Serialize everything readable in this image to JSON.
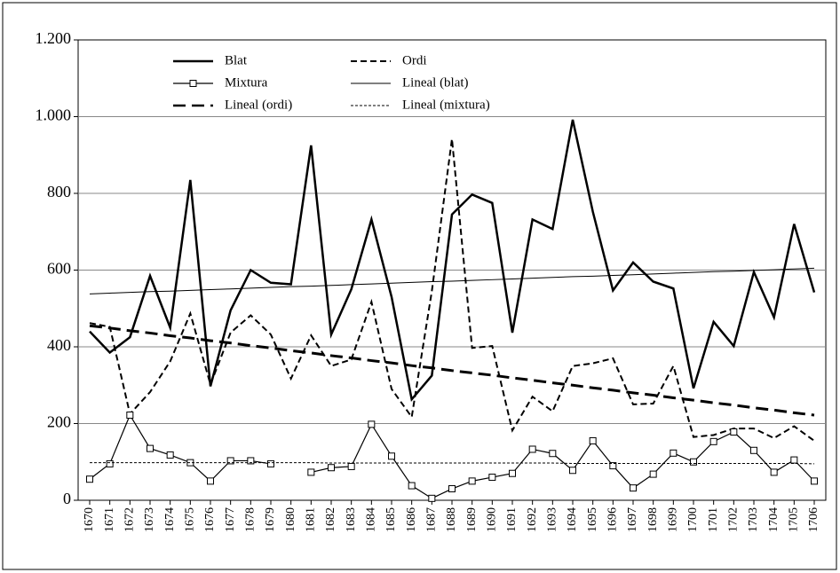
{
  "chart_data": {
    "type": "line",
    "categories": [
      "1670",
      "1671",
      "1672",
      "1673",
      "1674",
      "1675",
      "1676",
      "1677",
      "1678",
      "1679",
      "1680",
      "1681",
      "1682",
      "1683",
      "1684",
      "1685",
      "1686",
      "1687",
      "1688",
      "1689",
      "1690",
      "1691",
      "1692",
      "1693",
      "1694",
      "1695",
      "1696",
      "1697",
      "1698",
      "1699",
      "1700",
      "1701",
      "1702",
      "1703",
      "1704",
      "1705",
      "1706"
    ],
    "series": [
      {
        "name": "Blat",
        "color": "#000000",
        "line_style": "solid",
        "width": 2.5,
        "values": [
          440,
          385,
          425,
          585,
          450,
          835,
          297,
          495,
          600,
          567,
          563,
          925,
          432,
          550,
          732,
          530,
          263,
          325,
          745,
          797,
          775,
          437,
          732,
          707,
          992,
          752,
          547,
          620,
          570,
          552,
          292,
          465,
          402,
          595,
          477,
          720,
          542
        ]
      },
      {
        "name": "Ordi",
        "color": "#000000",
        "line_style": "dashed",
        "width": 2,
        "values": [
          462,
          452,
          225,
          282,
          362,
          487,
          302,
          437,
          482,
          432,
          317,
          430,
          350,
          367,
          517,
          290,
          217,
          545,
          942,
          397,
          402,
          182,
          270,
          232,
          350,
          357,
          370,
          250,
          252,
          350,
          165,
          170,
          187,
          187,
          162,
          193,
          155
        ]
      },
      {
        "name": "Mixtura",
        "color": "#000000",
        "line_style": "solid",
        "width": 1.2,
        "marker": "square",
        "values": [
          55,
          95,
          222,
          135,
          118,
          98,
          50,
          103,
          103,
          95,
          null,
          73,
          85,
          88,
          198,
          115,
          38,
          5,
          30,
          50,
          60,
          70,
          133,
          122,
          78,
          155,
          90,
          32,
          68,
          123,
          100,
          153,
          178,
          130,
          73,
          105,
          50
        ]
      },
      {
        "name": "Lineal (blat)",
        "color": "#000000",
        "line_style": "solid",
        "width": 1,
        "values": [
          538,
          540,
          542,
          544,
          545,
          547,
          549,
          551,
          553,
          555,
          557,
          558,
          560,
          562,
          564,
          566,
          568,
          570,
          571,
          573,
          575,
          577,
          579,
          581,
          583,
          584,
          586,
          588,
          590,
          592,
          594,
          596,
          597,
          599,
          601,
          603,
          605
        ]
      },
      {
        "name": "Lineal (ordi)",
        "color": "#000000",
        "line_style": "longdash",
        "width": 3,
        "values": [
          455,
          449,
          442,
          436,
          429,
          423,
          416,
          410,
          403,
          397,
          390,
          384,
          377,
          371,
          364,
          358,
          351,
          345,
          338,
          332,
          326,
          319,
          313,
          306,
          300,
          293,
          287,
          280,
          274,
          267,
          261,
          254,
          248,
          241,
          235,
          228,
          222
        ]
      },
      {
        "name": "Lineal (mixtura)",
        "color": "#000000",
        "line_style": "dotted",
        "width": 1,
        "values": [
          98,
          98,
          98,
          98,
          98,
          98,
          98,
          98,
          98,
          98,
          98,
          98,
          97,
          97,
          97,
          97,
          97,
          97,
          97,
          97,
          97,
          97,
          97,
          97,
          96,
          96,
          96,
          96,
          96,
          96,
          96,
          96,
          96,
          96,
          96,
          96,
          95
        ]
      }
    ],
    "ylim": [
      0,
      1200
    ],
    "yticks": [
      0,
      200,
      400,
      600,
      800,
      {
        "value": 1000,
        "label": "1.000"
      },
      {
        "value": 1200,
        "label": "1.200"
      }
    ],
    "grid": true,
    "legend": "top-left"
  }
}
